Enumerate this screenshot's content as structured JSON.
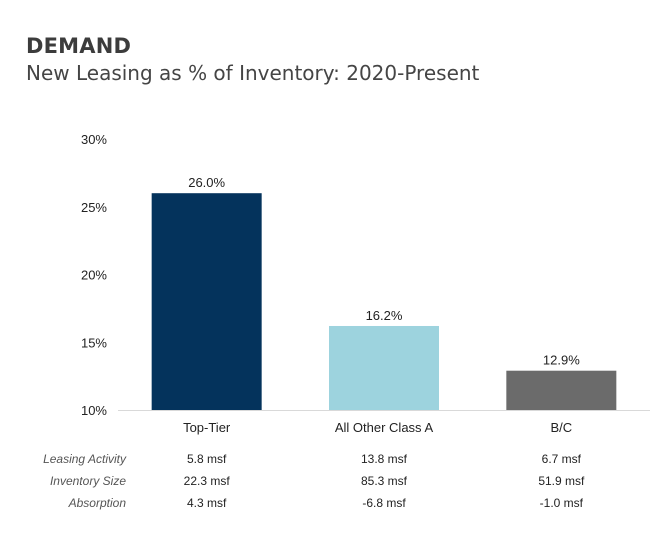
{
  "header": {
    "eyebrow": "DEMAND",
    "title": "New Leasing as % of Inventory: 2020-Present"
  },
  "chart_data": {
    "type": "bar",
    "title": "New Leasing as % of Inventory: 2020-Present",
    "xlabel": "",
    "ylabel": "",
    "categories": [
      "Top-Tier",
      "All Other Class A",
      "B/C"
    ],
    "values": [
      26.0,
      16.2,
      12.9
    ],
    "value_labels": [
      "26.0%",
      "16.2%",
      "12.9%"
    ],
    "ylim": [
      10,
      30
    ],
    "yticks": [
      10,
      15,
      20,
      25,
      30
    ],
    "ytick_labels": [
      "10%",
      "15%",
      "20%",
      "25%",
      "30%"
    ],
    "colors": [
      "#04335C",
      "#9DD3DE",
      "#6B6B6B"
    ],
    "grid": false,
    "legend": "none"
  },
  "table": {
    "rows": [
      {
        "label": "Leasing Activity",
        "values": [
          "5.8 msf",
          "13.8 msf",
          "6.7 msf"
        ]
      },
      {
        "label": "Inventory Size",
        "values": [
          "22.3 msf",
          "85.3 msf",
          "51.9 msf"
        ]
      },
      {
        "label": "Absorption",
        "values": [
          "4.3 msf",
          "-6.8 msf",
          "-1.0 msf"
        ]
      }
    ]
  }
}
